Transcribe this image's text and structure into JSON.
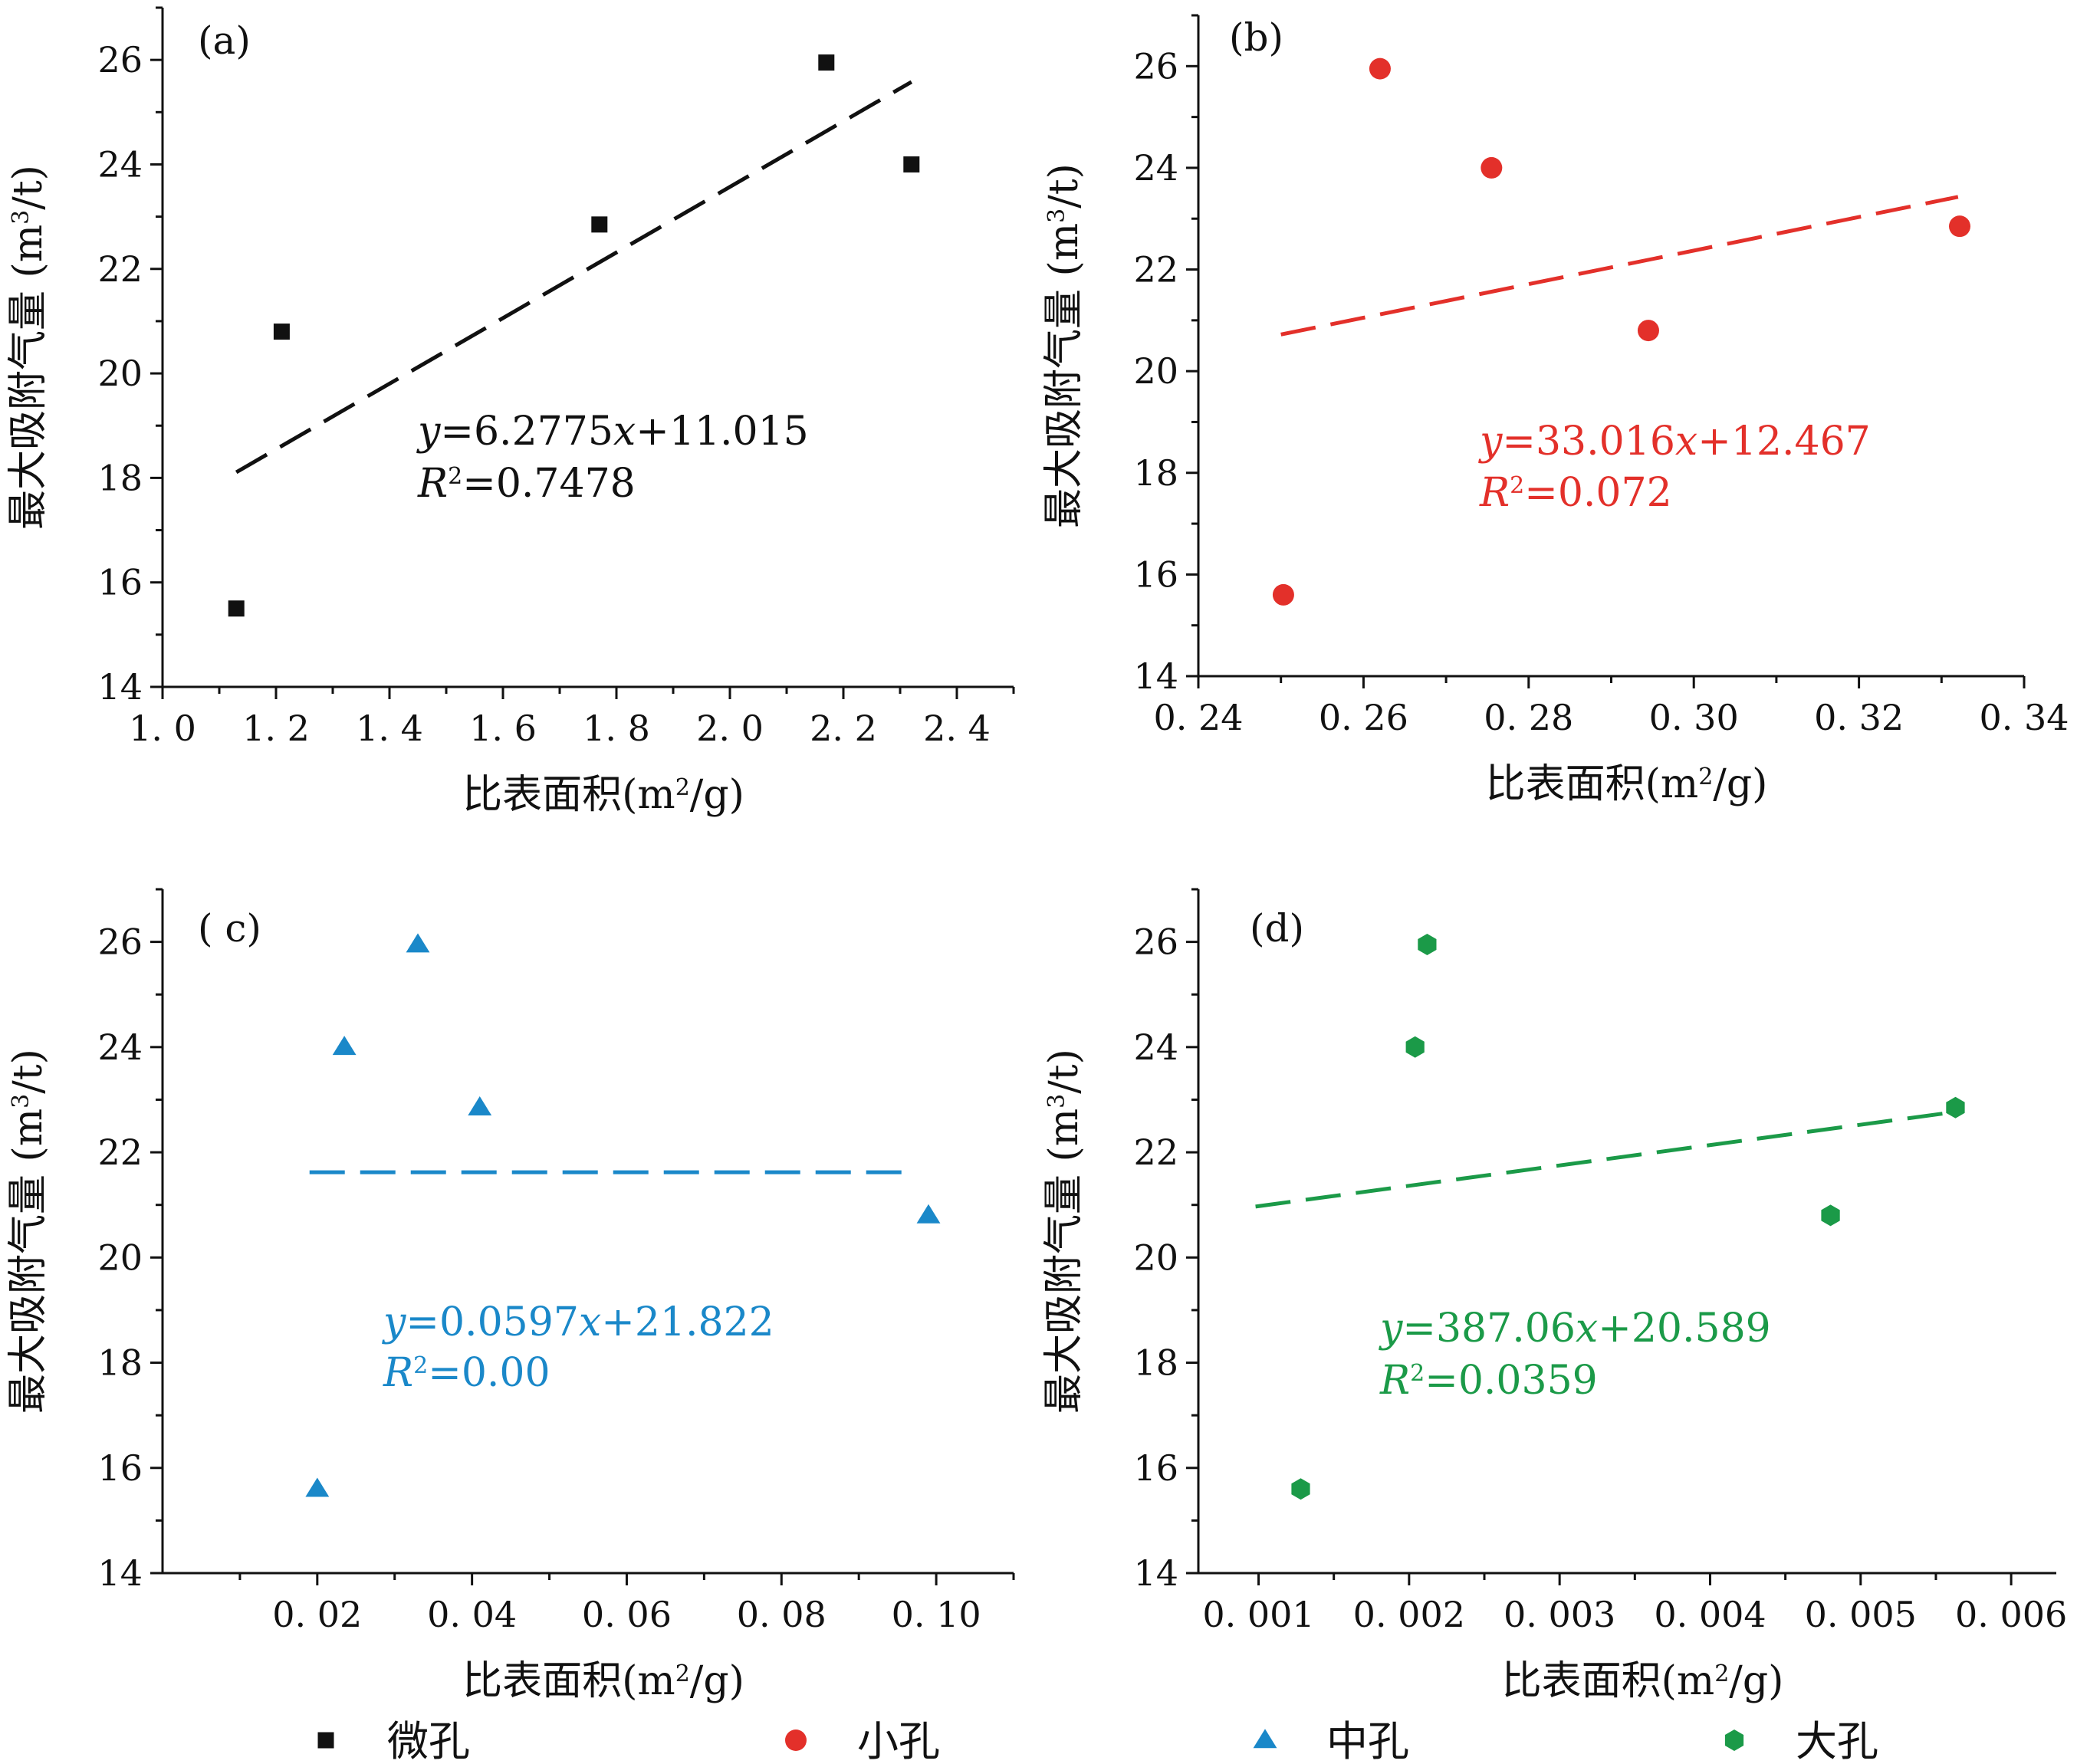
{
  "chart_data": [
    {
      "panel_label": "(a)",
      "type": "scatter",
      "xlabel": "比表面积(m²/g)",
      "ylabel": "最大吸附气量 (m³/t)",
      "xlim": [
        1.0,
        2.5
      ],
      "ylim": [
        14,
        27
      ],
      "xticks": [
        1.0,
        1.2,
        1.4,
        1.6,
        1.8,
        2.0,
        2.2,
        2.4
      ],
      "xtick_labels": [
        "1. 0",
        "1. 2",
        "1. 4",
        "1. 6",
        "1. 8",
        "2. 0",
        "2. 2",
        "2. 4"
      ],
      "yticks": [
        14,
        16,
        18,
        20,
        22,
        24,
        26
      ],
      "ytick_labels": [
        "14",
        "16",
        "18",
        "20",
        "22",
        "24",
        "26"
      ],
      "series": [
        {
          "name": "微孔",
          "marker": "square",
          "color": "#111111",
          "x": [
            1.13,
            1.21,
            1.77,
            2.17,
            2.32
          ],
          "y": [
            15.5,
            20.8,
            22.85,
            25.95,
            24.0
          ]
        }
      ],
      "fit": {
        "slope": 6.2775,
        "intercept": 11.015,
        "x_range": [
          1.13,
          2.32
        ]
      },
      "equation": {
        "prefix": "y",
        "body": "=6.2775",
        "var": "x",
        "suffix": "+11.015"
      },
      "r2": {
        "prefix": "R",
        "sup": "2",
        "value": "=0.7478"
      },
      "text_color": "#111111"
    },
    {
      "panel_label": "(b)",
      "type": "scatter",
      "xlabel": "比表面积(m²/g)",
      "ylabel": "最大吸附气量 (m³/t)",
      "xlim": [
        0.24,
        0.34
      ],
      "ylim": [
        14,
        27
      ],
      "xticks": [
        0.24,
        0.26,
        0.28,
        0.3,
        0.32,
        0.34
      ],
      "xtick_labels": [
        "0. 24",
        "0. 26",
        "0. 28",
        "0. 30",
        "0. 32",
        "0. 34"
      ],
      "yticks": [
        14,
        16,
        18,
        20,
        22,
        24,
        26
      ],
      "ytick_labels": [
        "14",
        "16",
        "18",
        "20",
        "22",
        "24",
        "26"
      ],
      "series": [
        {
          "name": "小孔",
          "marker": "circle",
          "color": "#e3302a",
          "x": [
            0.2503,
            0.262,
            0.2755,
            0.2945,
            0.3322
          ],
          "y": [
            15.6,
            25.95,
            24.0,
            20.8,
            22.85
          ]
        }
      ],
      "fit": {
        "slope": 33.016,
        "intercept": 12.467,
        "x_range": [
          0.25,
          0.332
        ]
      },
      "equation": {
        "prefix": "y",
        "body": "=33.016",
        "var": "x",
        "suffix": "+12.467"
      },
      "r2": {
        "prefix": "R",
        "sup": "2",
        "value": "=0.072"
      },
      "text_color": "#e3302a"
    },
    {
      "panel_label": "( c)",
      "type": "scatter",
      "xlabel": "比表面积(m²/g)",
      "ylabel": "最大吸附气量 (m³/t)",
      "xlim": [
        0.0,
        0.11
      ],
      "ylim": [
        14,
        27
      ],
      "xticks": [
        0.02,
        0.04,
        0.06,
        0.08,
        0.1
      ],
      "xtick_labels": [
        "0. 02",
        "0. 04",
        "0. 06",
        "0. 08",
        "0. 10"
      ],
      "yticks": [
        14,
        16,
        18,
        20,
        22,
        24,
        26
      ],
      "ytick_labels": [
        "14",
        "16",
        "18",
        "20",
        "22",
        "24",
        "26"
      ],
      "series": [
        {
          "name": "中孔",
          "marker": "triangle",
          "color": "#1a88c9",
          "x": [
            0.02,
            0.0235,
            0.033,
            0.041,
            0.099
          ],
          "y": [
            15.6,
            24.0,
            25.95,
            22.85,
            20.8
          ]
        }
      ],
      "fit": {
        "slope": 0.0597,
        "intercept": 21.822,
        "x_range": [
          0.019,
          0.097
        ],
        "drawn_y": 21.62
      },
      "equation": {
        "prefix": "y",
        "body": "=0.0597",
        "var": "x",
        "suffix": "+21.822"
      },
      "r2": {
        "prefix": "R",
        "sup": "2",
        "value": "=0.00"
      },
      "text_color": "#1a88c9"
    },
    {
      "panel_label": "(d)",
      "type": "scatter",
      "xlabel": "比表面积(m²/g)",
      "ylabel": "最大吸附气量 (m³/t)",
      "xlim": [
        0.0006,
        0.0063
      ],
      "ylim": [
        14,
        27
      ],
      "xticks": [
        0.001,
        0.002,
        0.003,
        0.004,
        0.005,
        0.006
      ],
      "xtick_labels": [
        "0. 001",
        "0. 002",
        "0. 003",
        "0. 004",
        "0. 005",
        "0. 006"
      ],
      "yticks": [
        14,
        16,
        18,
        20,
        22,
        24,
        26
      ],
      "ytick_labels": [
        "14",
        "16",
        "18",
        "20",
        "22",
        "24",
        "26"
      ],
      "series": [
        {
          "name": "大孔",
          "marker": "hexagon",
          "color": "#1b9a48",
          "x": [
            0.00128,
            0.00204,
            0.00212,
            0.0048,
            0.00563
          ],
          "y": [
            15.6,
            24.0,
            25.95,
            20.8,
            22.85
          ]
        }
      ],
      "fit": {
        "slope": 387.06,
        "intercept": 20.589,
        "x_range": [
          0.00098,
          0.00565
        ]
      },
      "equation": {
        "prefix": "y",
        "body": "=387.06",
        "var": "x",
        "suffix": "+20.589"
      },
      "r2": {
        "prefix": "R",
        "sup": "2",
        "value": "=0.0359"
      },
      "text_color": "#1b9a48"
    }
  ],
  "legend": {
    "placement": "bottom",
    "items": [
      {
        "label": "微孔",
        "marker": "square",
        "color": "#111111"
      },
      {
        "label": "小孔",
        "marker": "circle",
        "color": "#e3302a"
      },
      {
        "label": "中孔",
        "marker": "triangle",
        "color": "#1a88c9"
      },
      {
        "label": "大孔",
        "marker": "hexagon",
        "color": "#1b9a48"
      }
    ]
  }
}
